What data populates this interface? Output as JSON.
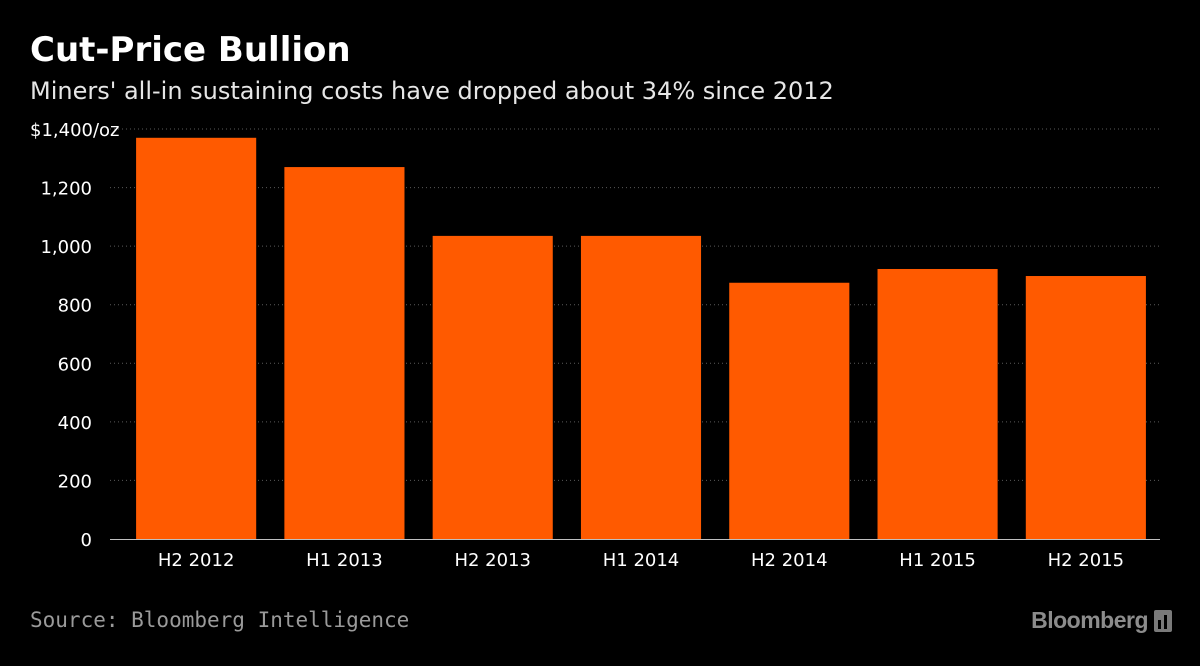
{
  "header": {
    "title": "Cut-Price Bullion",
    "subtitle": "Miners' all-in sustaining costs have dropped about 34% since 2012"
  },
  "footer": {
    "source": "Source: Bloomberg Intelligence",
    "brand": "Bloomberg"
  },
  "colors": {
    "bar": "#ff5a00",
    "background": "#000000",
    "gridline": "#5a5a5a",
    "axis_text": "#ffffff"
  },
  "chart_data": {
    "type": "bar",
    "title": "Cut-Price Bullion",
    "subtitle": "Miners' all-in sustaining costs have dropped about 34% since 2012",
    "categories": [
      "H2 2012",
      "H1 2013",
      "H2 2013",
      "H1 2014",
      "H2 2014",
      "H1 2015",
      "H2 2015"
    ],
    "values": [
      1370,
      1270,
      1035,
      1035,
      875,
      922,
      898
    ],
    "xlabel": "",
    "ylabel": "",
    "y_unit_label": "$1,400/oz",
    "ylim": [
      0,
      1400
    ],
    "yticks": [
      0,
      200,
      400,
      600,
      800,
      1000,
      1200,
      1400
    ],
    "ytick_labels": [
      "0",
      "200",
      "400",
      "600",
      "800",
      "1,000",
      "1,200",
      "$1,400/oz"
    ],
    "grid": true,
    "legend": "none"
  }
}
